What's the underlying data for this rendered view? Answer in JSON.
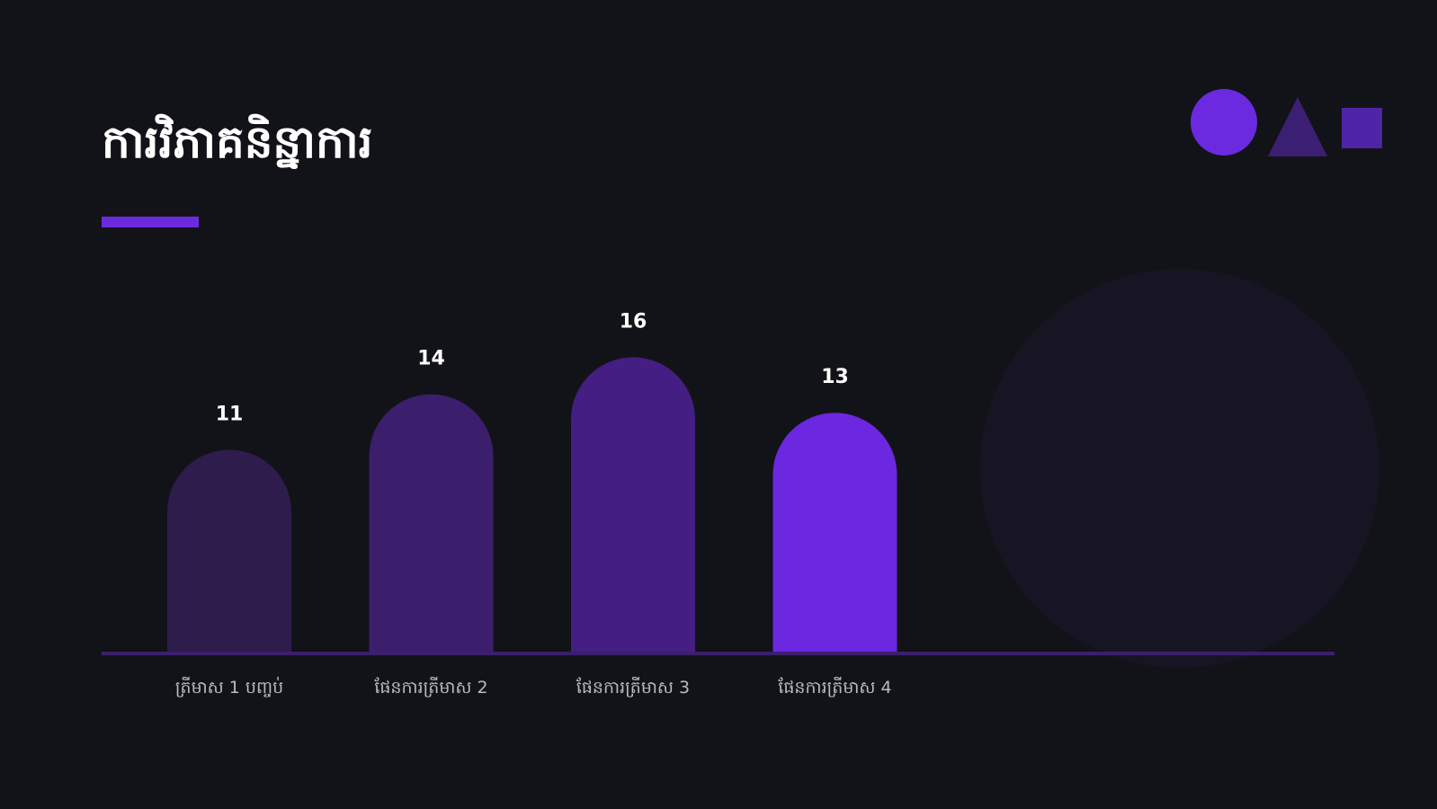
{
  "slide": {
    "title": "ការវិភាគនិន្នាការ",
    "accent_color": "#6c2ae0",
    "background_color": "#121318"
  },
  "decorations": {
    "icons": [
      "circle-icon",
      "triangle-icon",
      "square-icon"
    ],
    "colors": [
      "#6c2ae0",
      "#3a1f72",
      "#4f24a6"
    ]
  },
  "chart_data": {
    "type": "bar",
    "categories": [
      "ត្រីមាស 1 បញ្ចប់",
      "ផែនការត្រីមាស 2",
      "ផែនការត្រីមាស 3",
      "ផែនការត្រីមាស 4"
    ],
    "values": [
      11,
      14,
      16,
      13
    ],
    "colors": [
      "#2e1c4d",
      "#3b1f6c",
      "#441e82",
      "#6c27e0"
    ],
    "axis_color": "#3b1f6c",
    "ylim": [
      0,
      16
    ],
    "title": "",
    "xlabel": "",
    "ylabel": "",
    "grid": false,
    "legend": "none"
  }
}
